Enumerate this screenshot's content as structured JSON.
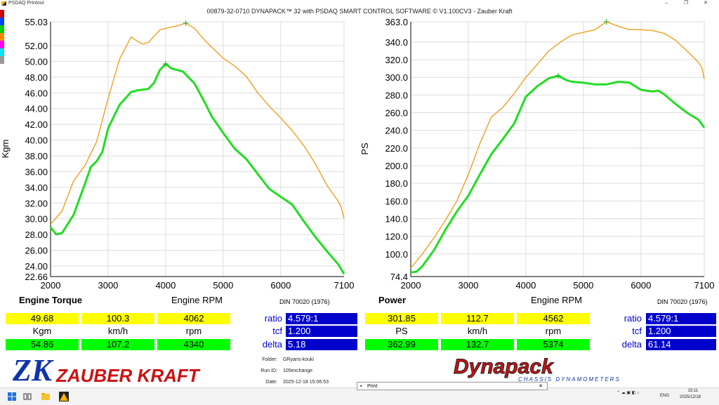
{
  "window": {
    "app_title": "PSDAQ Printout",
    "minimize": "–",
    "maximize": "❐",
    "close": "✕"
  },
  "header": "00879-32-0710 DYNAPACK™ 32 with PSDAQ SMART CONTROL SOFTWARE © V1.100CV3 - Zauber Kraft",
  "swatch_colors": [
    "#d40000",
    "#0044ff",
    "#00cc00",
    "#ff8800",
    "#ff00ff",
    "#00e5ff",
    "#999999"
  ],
  "torque": {
    "section_label": "Engine Torque",
    "x_title": "Engine RPM",
    "din": "DIN 70020 (1976)",
    "row1": {
      "v1": "49.68",
      "v2": "100.3",
      "v3": "4062"
    },
    "units": {
      "u1": "Kgm",
      "u2": "km/h",
      "u3": "rpm"
    },
    "row2": {
      "v1": "54.86",
      "v2": "107.2",
      "v3": "4340"
    },
    "ratio_label": "ratio",
    "ratio": "4.579:1",
    "tcf_label": "tcf",
    "tcf": "1.200",
    "delta_label": "delta",
    "delta": "5.18"
  },
  "power": {
    "section_label": "Power",
    "x_title": "Engine RPM",
    "din": "DIN 70020 (1976)",
    "row1": {
      "v1": "301.85",
      "v2": "112.7",
      "v3": "4562"
    },
    "units": {
      "u1": "PS",
      "u2": "km/h",
      "u3": "rpm"
    },
    "row2": {
      "v1": "362.99",
      "v2": "132.7",
      "v3": "5374"
    },
    "ratio_label": "ratio",
    "ratio": "4.579:1",
    "tcf_label": "tcf",
    "tcf": "1.200",
    "delta_label": "delta",
    "delta": "61.14"
  },
  "meta": {
    "folder_label": "Folder:",
    "folder": "GRyaris-kouki",
    "runid_label": "Run ID:",
    "runid": "105exchange",
    "date_label": "Date:",
    "date": "2025-12-18 15:06:53"
  },
  "logos": {
    "zauber": "ZAUBER KRAFT",
    "zk": "ZK",
    "dynapack": "Dynapack",
    "dynapack_sub": "CHASSIS DYNAMOMETERS"
  },
  "print_window": {
    "title": "Print",
    "close": "✕"
  },
  "taskbar": {
    "lang": "ENG",
    "time": "15:11",
    "date": "2025/12/18"
  },
  "chart_data": [
    {
      "type": "line",
      "ylabel": "Kgm",
      "xlabel": "Engine RPM",
      "xlim": [
        2000,
        7100
      ],
      "ylim": [
        22.66,
        55.03
      ],
      "x_ticks": [
        "2000",
        "3000",
        "4000",
        "5000",
        "6000",
        "7100"
      ],
      "y_ticks": [
        "55.03",
        "52.00",
        "50.00",
        "48.00",
        "46.00",
        "44.00",
        "42.00",
        "40.00",
        "38.00",
        "36.00",
        "34.00",
        "32.00",
        "30.00",
        "28.00",
        "26.00",
        "24.00",
        "22.66"
      ],
      "series": [
        {
          "color": "#f0a020",
          "x": [
            2000,
            2200,
            2400,
            2600,
            2800,
            3000,
            3200,
            3400,
            3500,
            3600,
            3700,
            3800,
            3900,
            4000,
            4200,
            4350,
            4500,
            4700,
            4900,
            5000,
            5200,
            5400,
            5600,
            5800,
            6000,
            6200,
            6400,
            6600,
            6800,
            7000,
            7050,
            7100
          ],
          "y": [
            29.3,
            31.0,
            34.8,
            36.8,
            39.8,
            45.3,
            50.3,
            53.1,
            52.6,
            52.2,
            52.4,
            53.2,
            54.0,
            54.2,
            54.5,
            54.86,
            54.2,
            52.5,
            51.1,
            50.4,
            49.4,
            48.1,
            46.0,
            44.3,
            42.8,
            41.2,
            39.3,
            37.0,
            34.3,
            32.2,
            31.5,
            30.0
          ]
        },
        {
          "color": "#22dd22",
          "x": [
            2000,
            2100,
            2200,
            2400,
            2600,
            2700,
            2800,
            2900,
            3000,
            3200,
            3400,
            3500,
            3700,
            3800,
            3900,
            4000,
            4100,
            4300,
            4500,
            4700,
            4800,
            5000,
            5200,
            5400,
            5600,
            5800,
            6000,
            6200,
            6400,
            6600,
            6800,
            7000,
            7100
          ],
          "y": [
            28.9,
            28.0,
            28.2,
            30.5,
            34.5,
            36.6,
            37.3,
            38.5,
            41.5,
            44.5,
            46.1,
            46.3,
            46.5,
            47.3,
            48.9,
            49.68,
            49.1,
            48.7,
            47.2,
            44.5,
            43.0,
            40.9,
            38.9,
            37.6,
            35.7,
            33.8,
            32.8,
            31.8,
            29.7,
            27.7,
            25.9,
            24.2,
            23.0
          ]
        }
      ]
    },
    {
      "type": "line",
      "ylabel": "PS",
      "xlabel": "Engine RPM",
      "xlim": [
        2000,
        7100
      ],
      "ylim": [
        74.4,
        363.0
      ],
      "x_ticks": [
        "2000",
        "3000",
        "4000",
        "5000",
        "6000",
        "7100"
      ],
      "y_ticks": [
        "363.0",
        "340.0",
        "320.0",
        "300.0",
        "280.0",
        "260.0",
        "240.0",
        "220.0",
        "200.0",
        "180.0",
        "160.0",
        "140.0",
        "120.0",
        "100.0",
        "74.4"
      ],
      "series": [
        {
          "color": "#f0a020",
          "x": [
            2000,
            2200,
            2400,
            2600,
            2800,
            3000,
            3200,
            3400,
            3600,
            3800,
            4000,
            4200,
            4400,
            4600,
            4800,
            5000,
            5200,
            5400,
            5600,
            5800,
            6000,
            6200,
            6400,
            6600,
            6800,
            7000,
            7060,
            7100
          ],
          "y": [
            84,
            100,
            118,
            138,
            160,
            190,
            225,
            255,
            266,
            282,
            300,
            315,
            330,
            340,
            348,
            351,
            354,
            362.99,
            358,
            354,
            354,
            353,
            350,
            342,
            330,
            317,
            311,
            298
          ]
        },
        {
          "color": "#22dd22",
          "x": [
            2000,
            2100,
            2200,
            2400,
            2600,
            2800,
            3000,
            3200,
            3400,
            3600,
            3800,
            4000,
            4200,
            4400,
            4562,
            4700,
            4800,
            5000,
            5200,
            5400,
            5600,
            5800,
            6000,
            6200,
            6300,
            6400,
            6600,
            6800,
            7000,
            7100
          ],
          "y": [
            79,
            80,
            86,
            104,
            127,
            148,
            166,
            190,
            213,
            230,
            248,
            278,
            290,
            299,
            301.85,
            297,
            295,
            294,
            292,
            292,
            295,
            294,
            286,
            284,
            285,
            281,
            270,
            260,
            252,
            243
          ]
        }
      ]
    }
  ]
}
